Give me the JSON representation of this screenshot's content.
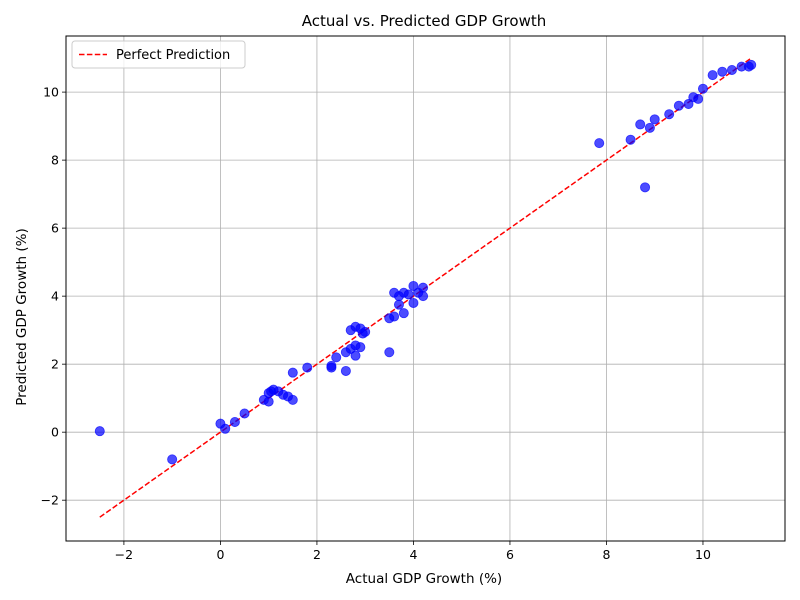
{
  "chart_data": {
    "type": "scatter",
    "title": "Actual vs. Predicted GDP Growth",
    "xlabel": "Actual GDP Growth (%)",
    "ylabel": "Predicted GDP Growth (%)",
    "xlim": [
      -3.2,
      11.7
    ],
    "ylim": [
      -3.2,
      11.65
    ],
    "xticks": [
      -2,
      0,
      2,
      4,
      6,
      8,
      10
    ],
    "yticks": [
      -2,
      0,
      2,
      4,
      6,
      8,
      10
    ],
    "grid": true,
    "legend_position": "top-left",
    "colors": {
      "points": "#0000ff",
      "reference_line": "#ff0000",
      "grid": "#b0b0b0"
    },
    "reference_line": {
      "name": "Perfect Prediction",
      "style": "dashed",
      "x": [
        -2.5,
        11.0
      ],
      "y": [
        -2.5,
        11.0
      ]
    },
    "points": [
      [
        -2.5,
        0.03
      ],
      [
        -1.0,
        -0.8
      ],
      [
        0.0,
        0.25
      ],
      [
        0.1,
        0.1
      ],
      [
        0.3,
        0.3
      ],
      [
        0.5,
        0.55
      ],
      [
        0.9,
        0.95
      ],
      [
        1.0,
        1.15
      ],
      [
        1.0,
        0.9
      ],
      [
        1.05,
        1.2
      ],
      [
        1.1,
        1.25
      ],
      [
        1.2,
        1.2
      ],
      [
        1.3,
        1.1
      ],
      [
        1.4,
        1.05
      ],
      [
        1.5,
        0.95
      ],
      [
        1.5,
        1.75
      ],
      [
        1.8,
        1.9
      ],
      [
        2.3,
        1.95
      ],
      [
        2.3,
        1.9
      ],
      [
        2.4,
        2.2
      ],
      [
        2.6,
        2.35
      ],
      [
        2.6,
        1.8
      ],
      [
        2.7,
        3.0
      ],
      [
        2.7,
        2.45
      ],
      [
        2.8,
        2.25
      ],
      [
        2.8,
        2.55
      ],
      [
        2.8,
        3.1
      ],
      [
        2.9,
        2.5
      ],
      [
        2.9,
        3.05
      ],
      [
        2.95,
        2.9
      ],
      [
        3.0,
        2.95
      ],
      [
        3.5,
        2.35
      ],
      [
        3.5,
        3.35
      ],
      [
        3.6,
        3.4
      ],
      [
        3.6,
        4.1
      ],
      [
        3.7,
        3.75
      ],
      [
        3.7,
        4.0
      ],
      [
        3.8,
        3.5
      ],
      [
        3.8,
        4.1
      ],
      [
        3.9,
        4.05
      ],
      [
        4.0,
        3.8
      ],
      [
        4.0,
        4.3
      ],
      [
        4.1,
        4.1
      ],
      [
        4.2,
        4.25
      ],
      [
        4.2,
        4.0
      ],
      [
        7.85,
        8.5
      ],
      [
        8.5,
        8.6
      ],
      [
        8.7,
        9.05
      ],
      [
        8.8,
        7.2
      ],
      [
        8.9,
        8.95
      ],
      [
        9.0,
        9.2
      ],
      [
        9.3,
        9.35
      ],
      [
        9.5,
        9.6
      ],
      [
        9.7,
        9.65
      ],
      [
        9.8,
        9.85
      ],
      [
        9.9,
        9.8
      ],
      [
        10.0,
        10.1
      ],
      [
        10.2,
        10.5
      ],
      [
        10.4,
        10.6
      ],
      [
        10.6,
        10.65
      ],
      [
        10.8,
        10.75
      ],
      [
        10.95,
        10.75
      ],
      [
        11.0,
        10.8
      ]
    ]
  }
}
